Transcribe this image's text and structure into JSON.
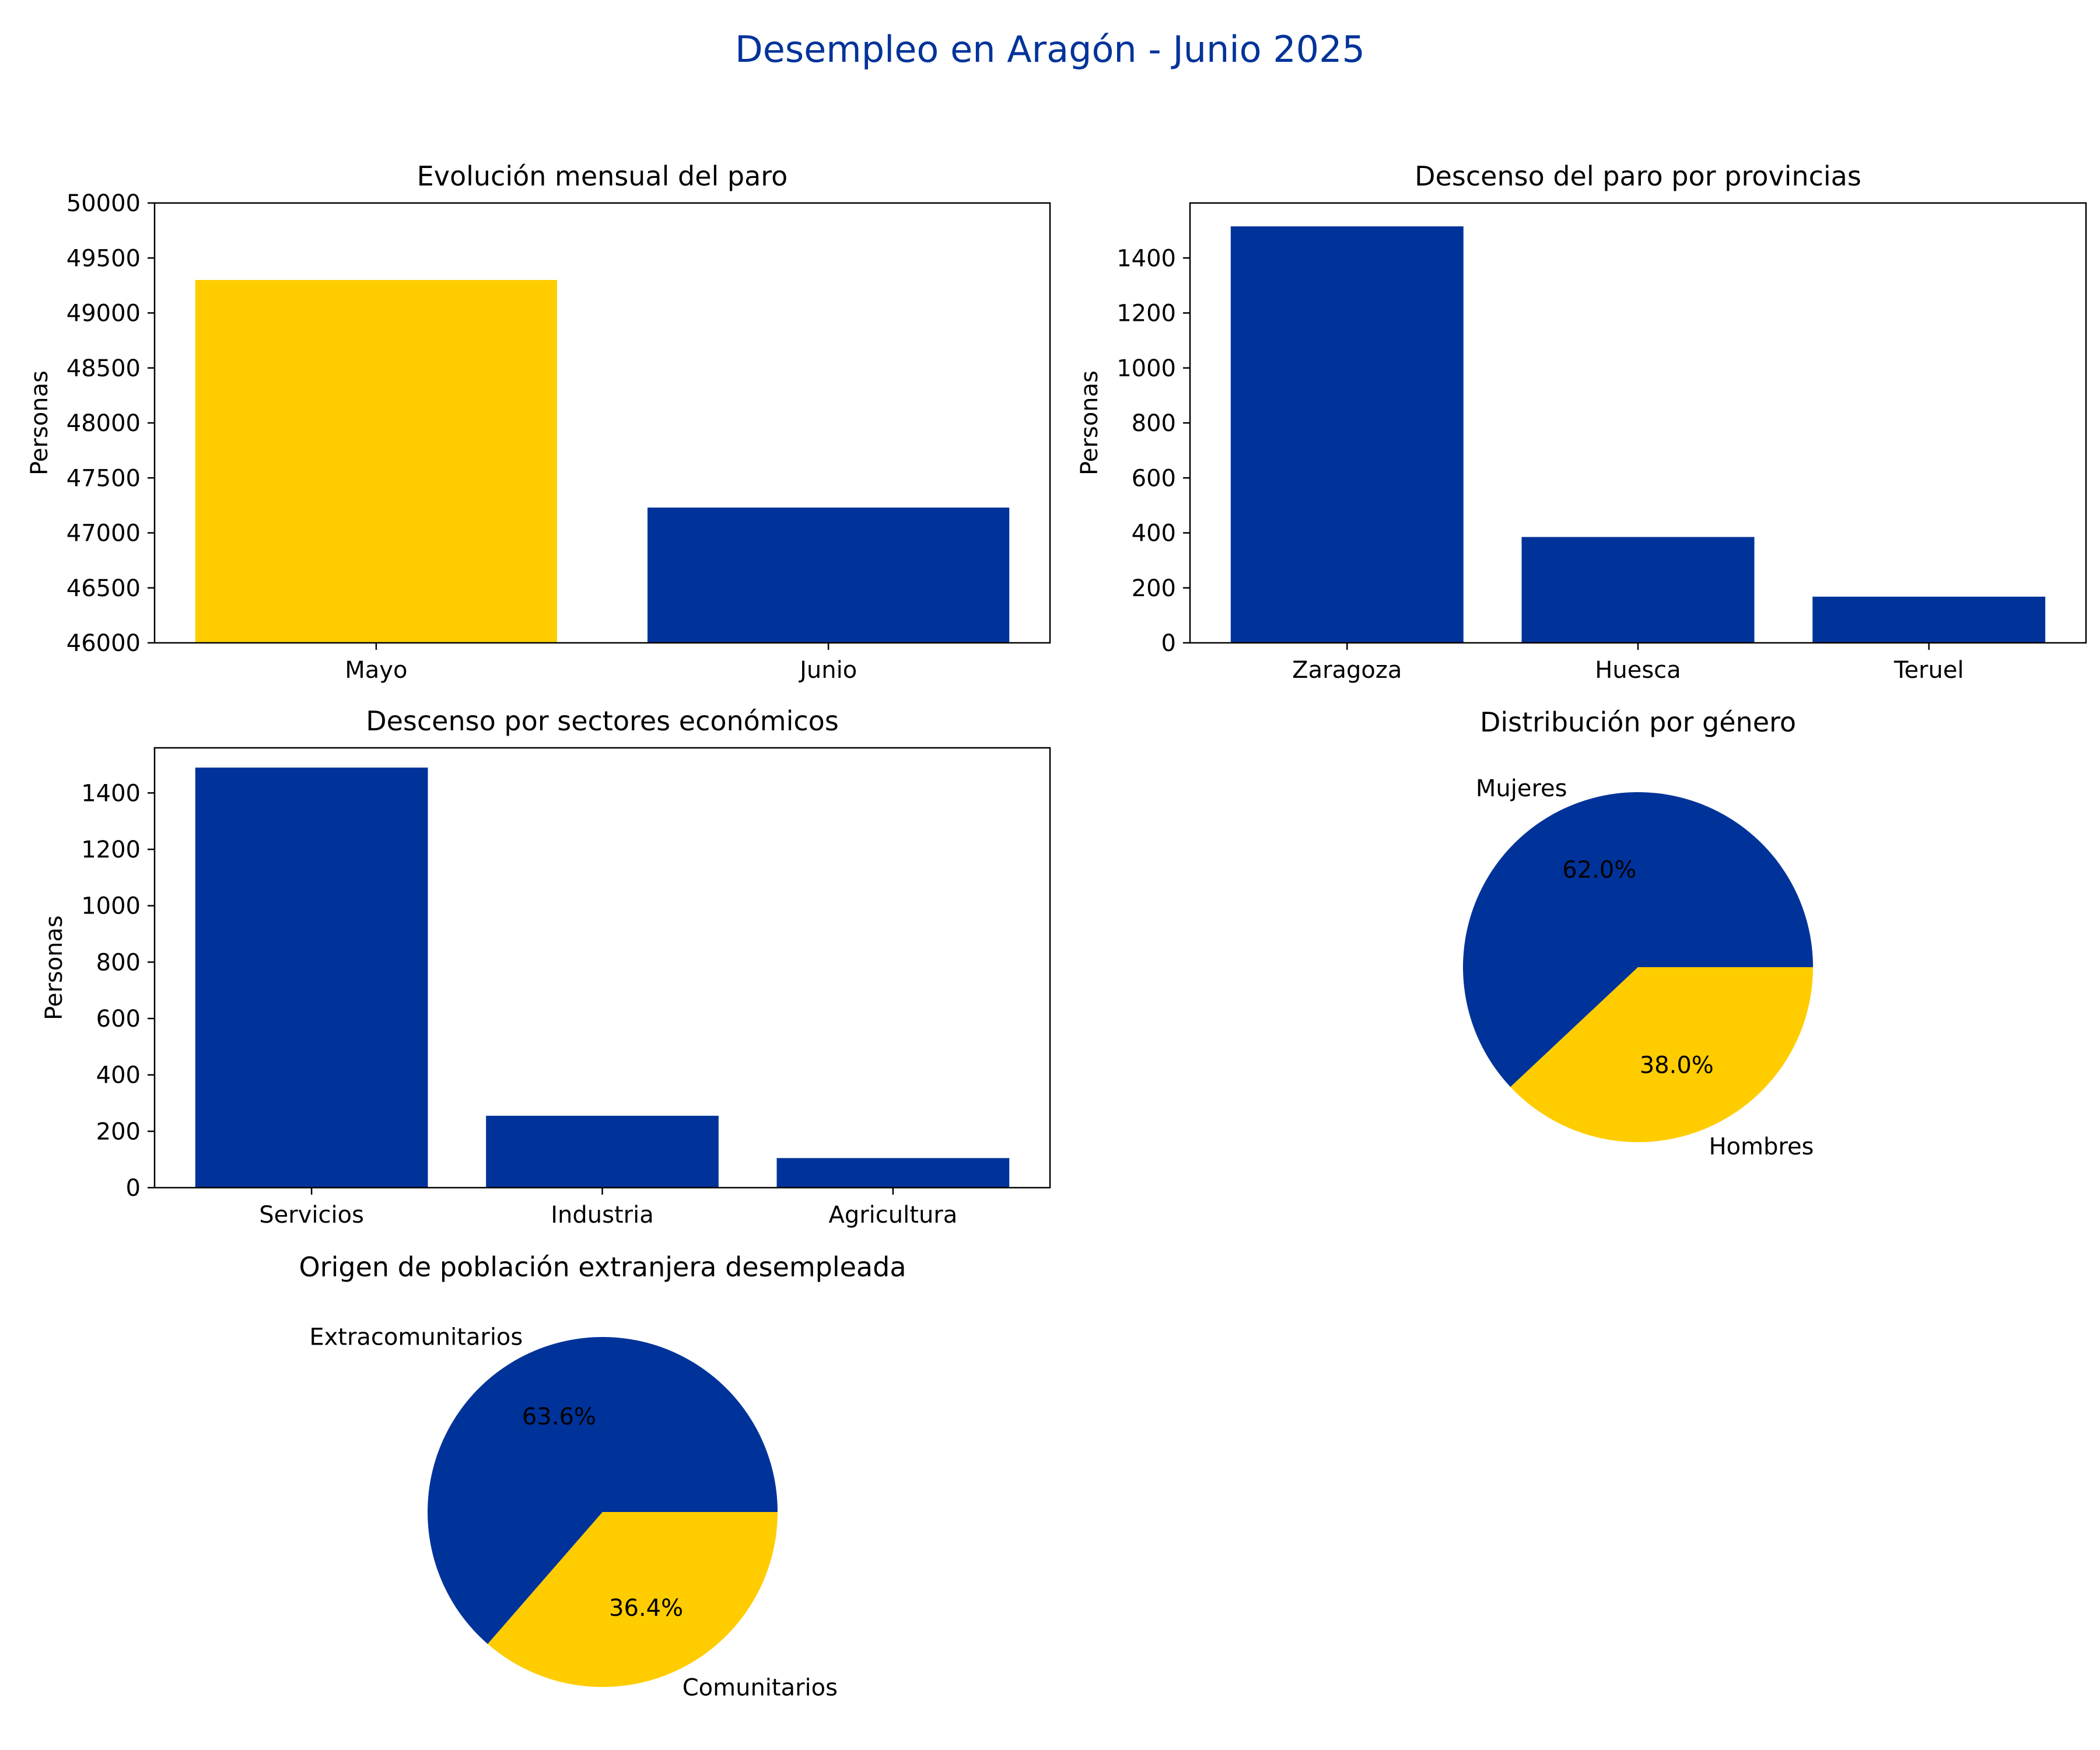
{
  "title": "Desempleo en Aragón - Junio 2025",
  "colors": {
    "blue": "#003399",
    "yellow": "#FFCC00",
    "title": "#003399",
    "text": "#000000"
  },
  "chart_data": [
    {
      "type": "bar",
      "title": "Evolución mensual del paro",
      "ylabel": "Personas",
      "categories": [
        "Mayo",
        "Junio"
      ],
      "values": [
        49300,
        47230
      ],
      "bar_colors": [
        "#FFCC00",
        "#003399"
      ],
      "ylim": [
        46000,
        50000
      ],
      "yticks": [
        46000,
        46500,
        47000,
        47500,
        48000,
        48500,
        49000,
        49500,
        50000
      ],
      "grid": false
    },
    {
      "type": "bar",
      "title": "Descenso del paro por provincias",
      "ylabel": "Personas",
      "categories": [
        "Zaragoza",
        "Huesca",
        "Teruel"
      ],
      "values": [
        1515,
        385,
        168
      ],
      "bar_colors": [
        "#003399",
        "#003399",
        "#003399"
      ],
      "ylim": [
        0,
        1600
      ],
      "yticks": [
        0,
        200,
        400,
        600,
        800,
        1000,
        1200,
        1400
      ],
      "grid": false
    },
    {
      "type": "bar",
      "title": "Descenso por sectores económicos",
      "ylabel": "Personas",
      "categories": [
        "Servicios",
        "Industria",
        "Agricultura"
      ],
      "values": [
        1490,
        255,
        105
      ],
      "bar_colors": [
        "#003399",
        "#003399",
        "#003399"
      ],
      "ylim": [
        0,
        1560
      ],
      "yticks": [
        0,
        200,
        400,
        600,
        800,
        1000,
        1200,
        1400
      ],
      "grid": false
    },
    {
      "type": "pie",
      "title": "Distribución por género",
      "labels": [
        "Mujeres",
        "Hombres"
      ],
      "values": [
        62.0,
        38.0
      ],
      "pct_labels": [
        "62.0%",
        "38.0%"
      ],
      "colors": [
        "#003399",
        "#FFCC00"
      ]
    },
    {
      "type": "pie",
      "title": "Origen de población extranjera desempleada",
      "labels": [
        "Extracomunitarios",
        "Comunitarios"
      ],
      "values": [
        63.6,
        36.4
      ],
      "pct_labels": [
        "63.6%",
        "36.4%"
      ],
      "colors": [
        "#003399",
        "#FFCC00"
      ]
    }
  ]
}
